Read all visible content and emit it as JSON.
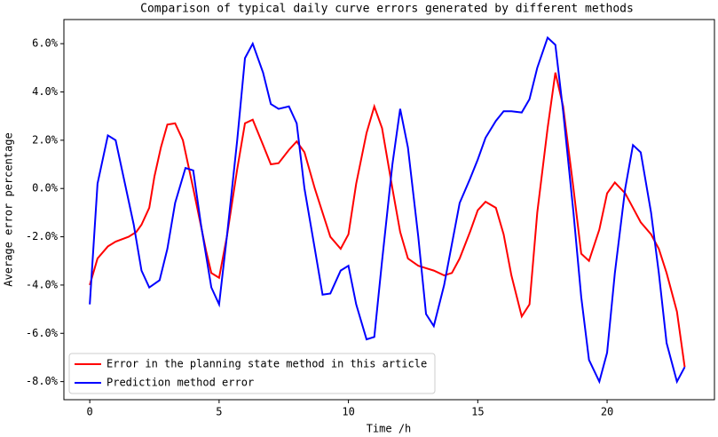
{
  "chart_data": {
    "type": "line",
    "title": "Comparison of typical daily curve errors generated by different methods",
    "xlabel": "Time /h",
    "ylabel": "Average error percentage",
    "xlim": [
      -1.0,
      24.15
    ],
    "xticks": [
      0,
      5,
      10,
      15,
      20
    ],
    "ylim": [
      -8.75,
      7.0
    ],
    "yticks": [
      {
        "value": -8,
        "label": "-8.0%"
      },
      {
        "value": -6,
        "label": "-6.0%"
      },
      {
        "value": -4,
        "label": "-4.0%"
      },
      {
        "value": -2,
        "label": "-2.0%"
      },
      {
        "value": 0,
        "label": "0.0%"
      },
      {
        "value": 2,
        "label": "2.0%"
      },
      {
        "value": 4,
        "label": "4.0%"
      },
      {
        "value": 6,
        "label": "6.0%"
      }
    ],
    "legend": "lower left",
    "series": [
      {
        "name": "Error in the planning state method in this article",
        "color": "#ff0000",
        "x": [
          0,
          0.3,
          0.7,
          1,
          1.5,
          1.8,
          2,
          2.3,
          2.5,
          2.75,
          3,
          3.3,
          3.6,
          4,
          4.5,
          4.7,
          5,
          5.3,
          5.7,
          6,
          6.3,
          6.7,
          7,
          7.3,
          7.7,
          8,
          8.3,
          8.7,
          9,
          9.3,
          9.7,
          10,
          10.3,
          10.7,
          11,
          11.3,
          11.7,
          12,
          12.3,
          12.7,
          13,
          13.3,
          13.7,
          14,
          14.3,
          14.7,
          15,
          15.3,
          15.7,
          16,
          16.3,
          16.7,
          17,
          17.3,
          17.7,
          18,
          18.3,
          18.7,
          19,
          19.3,
          19.7,
          20,
          20.3,
          20.7,
          21,
          21.3,
          21.7,
          22,
          22.3,
          22.7,
          23
        ],
        "values": [
          -4.0,
          -2.9,
          -2.4,
          -2.2,
          -2.0,
          -1.8,
          -1.5,
          -0.8,
          0.5,
          1.7,
          2.65,
          2.7,
          2.0,
          0.0,
          -2.6,
          -3.5,
          -3.7,
          -2.0,
          0.8,
          2.7,
          2.85,
          1.8,
          1.0,
          1.05,
          1.6,
          1.95,
          1.5,
          0.0,
          -1.0,
          -2.0,
          -2.5,
          -1.9,
          0.2,
          2.3,
          3.4,
          2.5,
          0.0,
          -1.8,
          -2.9,
          -3.2,
          -3.3,
          -3.4,
          -3.6,
          -3.5,
          -2.9,
          -1.8,
          -0.9,
          -0.55,
          -0.8,
          -1.9,
          -3.6,
          -5.3,
          -4.8,
          -1.0,
          2.5,
          4.8,
          3.4,
          0.0,
          -2.7,
          -3.0,
          -1.7,
          -0.2,
          0.25,
          -0.2,
          -0.8,
          -1.4,
          -1.9,
          -2.5,
          -3.5,
          -5.1,
          -7.4
        ]
      },
      {
        "name": "Prediction method error",
        "color": "#0000ff",
        "x": [
          0,
          0.3,
          0.7,
          1,
          1.3,
          1.7,
          2,
          2.3,
          2.7,
          3,
          3.3,
          3.7,
          4,
          4.3,
          4.7,
          5,
          5.3,
          5.7,
          6,
          6.3,
          6.7,
          7,
          7.3,
          7.7,
          8,
          8.3,
          8.7,
          9,
          9.3,
          9.7,
          10,
          10.3,
          10.7,
          11,
          11.3,
          11.7,
          12,
          12.3,
          12.7,
          13,
          13.3,
          13.7,
          14,
          14.3,
          14.7,
          15,
          15.3,
          15.7,
          16,
          16.3,
          16.7,
          17,
          17.3,
          17.7,
          18,
          18.3,
          18.7,
          19,
          19.3,
          19.7,
          20,
          20.3,
          20.7,
          21,
          21.3,
          21.7,
          22,
          22.3,
          22.7,
          23
        ],
        "values": [
          -4.8,
          0.2,
          2.2,
          2.0,
          0.5,
          -1.5,
          -3.4,
          -4.1,
          -3.8,
          -2.5,
          -0.6,
          0.85,
          0.75,
          -1.5,
          -4.1,
          -4.8,
          -2.0,
          2.0,
          5.4,
          6.0,
          4.8,
          3.5,
          3.3,
          3.4,
          2.7,
          0.0,
          -2.5,
          -4.4,
          -4.35,
          -3.4,
          -3.2,
          -4.8,
          -6.25,
          -6.15,
          -3.0,
          1.0,
          3.3,
          1.7,
          -2.0,
          -5.2,
          -5.7,
          -4.0,
          -2.3,
          -0.6,
          0.4,
          1.2,
          2.1,
          2.8,
          3.2,
          3.2,
          3.15,
          3.7,
          5.0,
          6.25,
          5.95,
          3.2,
          -1.0,
          -4.5,
          -7.1,
          -8.0,
          -6.8,
          -3.5,
          0.0,
          1.8,
          1.5,
          -1.0,
          -3.5,
          -6.4,
          -8.0,
          -7.4
        ]
      }
    ]
  }
}
